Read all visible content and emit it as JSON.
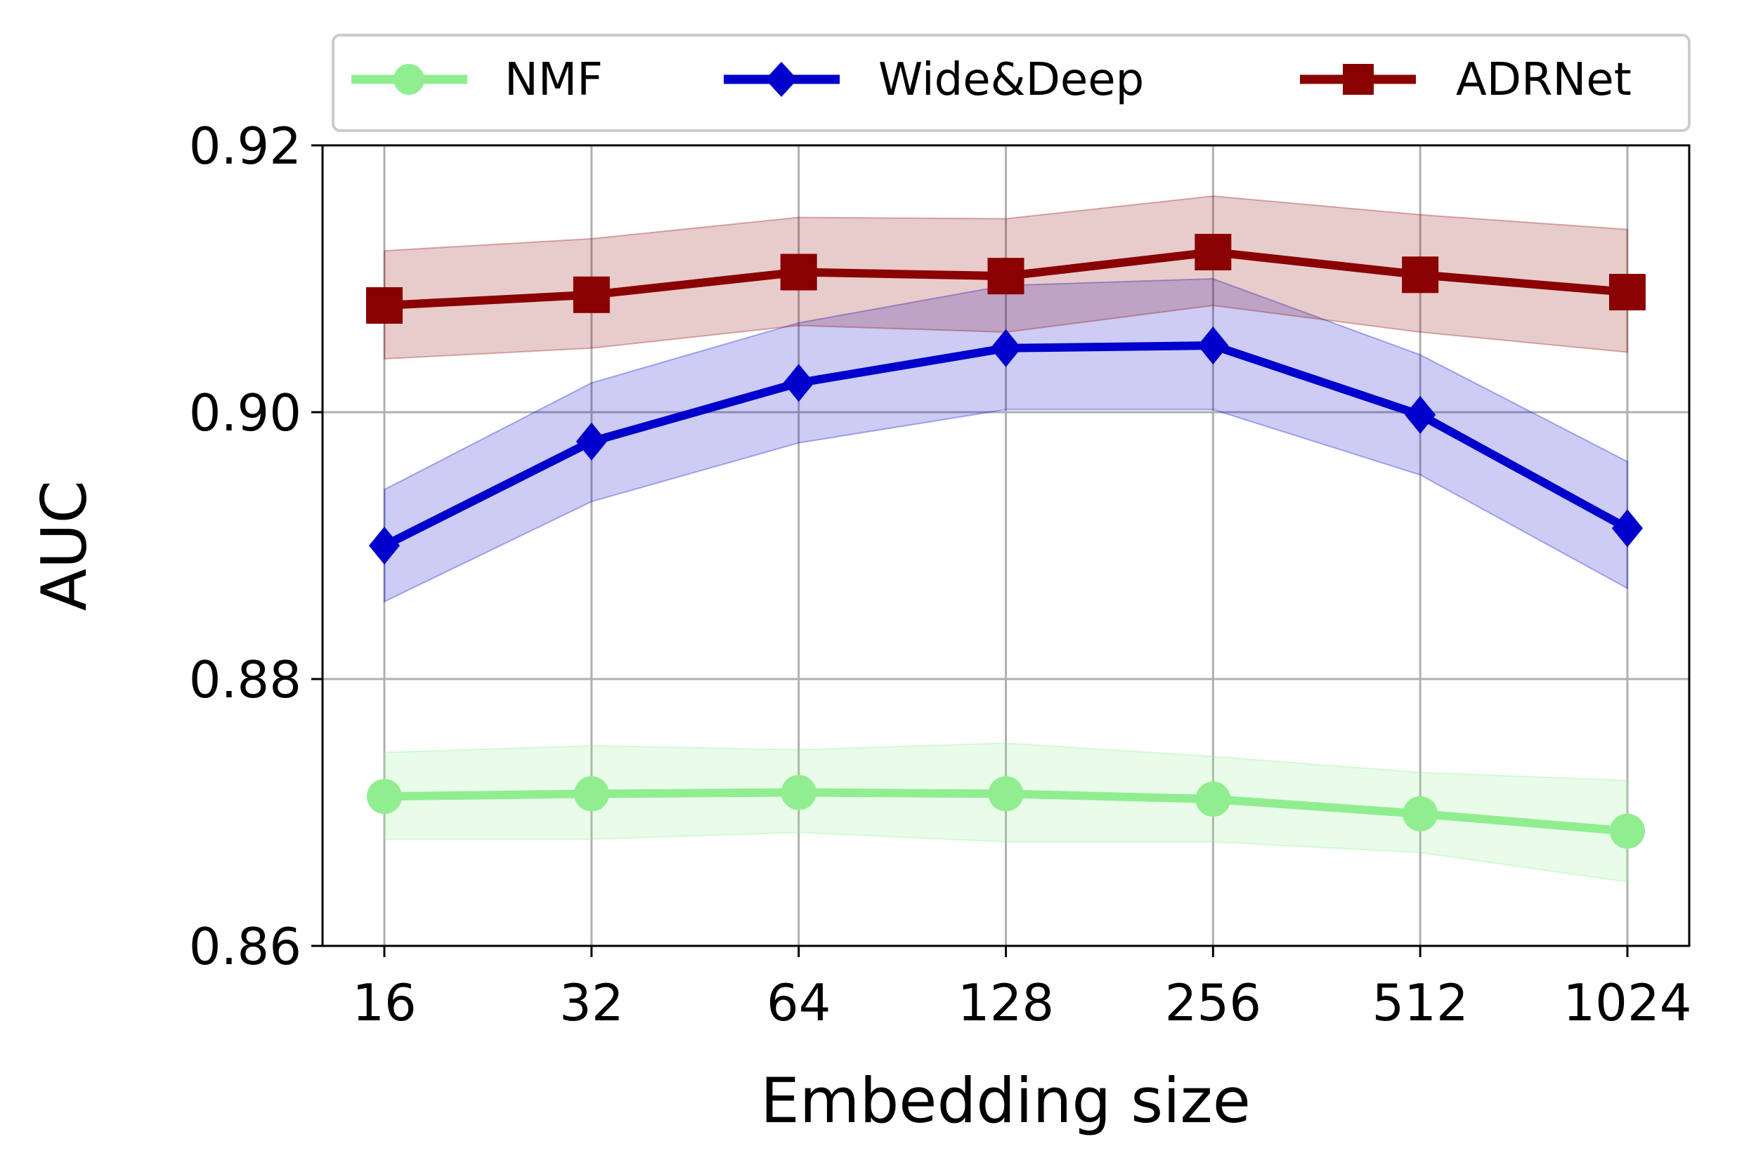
{
  "chart_data": {
    "type": "line",
    "xlabel": "Embedding size",
    "ylabel": "AUC",
    "categories": [
      "16",
      "32",
      "64",
      "128",
      "256",
      "512",
      "1024"
    ],
    "ylim": [
      0.86,
      0.92
    ],
    "yticks": [
      "0.86",
      "0.88",
      "0.90",
      "0.92"
    ],
    "grid": true,
    "legend_position": "top",
    "series": [
      {
        "name": "NMF",
        "color": "#90ee90",
        "marker": "circle",
        "values": [
          0.8712,
          0.8714,
          0.8715,
          0.8714,
          0.871,
          0.8699,
          0.8686
        ],
        "upper": [
          0.8745,
          0.875,
          0.8747,
          0.8752,
          0.8742,
          0.873,
          0.8724
        ],
        "lower": [
          0.868,
          0.868,
          0.8685,
          0.8678,
          0.8678,
          0.867,
          0.8648
        ]
      },
      {
        "name": "Wide&Deep",
        "color": "#0000cd",
        "marker": "diamond",
        "values": [
          0.89,
          0.8978,
          0.9022,
          0.9048,
          0.905,
          0.8998,
          0.8913
        ],
        "upper": [
          0.8942,
          0.9022,
          0.9067,
          0.9095,
          0.91,
          0.9043,
          0.8963
        ],
        "lower": [
          0.8858,
          0.8933,
          0.8977,
          0.9002,
          0.9002,
          0.8953,
          0.8868
        ]
      },
      {
        "name": "ADRNet",
        "color": "#8b0000",
        "marker": "square",
        "values": [
          0.908,
          0.9088,
          0.9105,
          0.9102,
          0.912,
          0.9103,
          0.909
        ],
        "upper": [
          0.9121,
          0.913,
          0.9146,
          0.9145,
          0.9162,
          0.9148,
          0.9137
        ],
        "lower": [
          0.904,
          0.9048,
          0.9065,
          0.906,
          0.908,
          0.906,
          0.9045
        ]
      }
    ]
  }
}
